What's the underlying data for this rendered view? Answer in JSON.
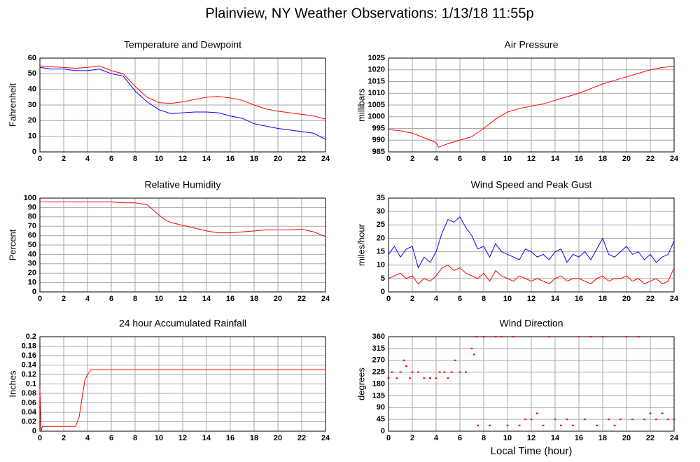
{
  "title": "Plainview, NY Weather Observations: 1/13/18 11:55p",
  "chart_data": [
    {
      "type": "line",
      "title": "Temperature and Dewpoint",
      "ylabel": "Fahrenheit",
      "x": [
        0,
        1,
        2,
        3,
        4,
        5,
        6,
        7,
        8,
        9,
        10,
        11,
        12,
        13,
        14,
        15,
        16,
        17,
        18,
        19,
        20,
        21,
        22,
        23,
        24
      ],
      "series": [
        {
          "color": "#ff0000",
          "values": [
            55,
            54.5,
            54,
            53.5,
            54,
            55,
            52,
            50,
            42,
            35,
            31.5,
            31,
            32,
            33.5,
            35,
            35.5,
            34.5,
            33,
            30,
            27.5,
            26,
            25,
            24,
            23,
            21
          ]
        },
        {
          "color": "#0000ff",
          "values": [
            54,
            53,
            53,
            52,
            52,
            53,
            50,
            48.5,
            39,
            32,
            27,
            24.5,
            25,
            25.5,
            25.5,
            25,
            23,
            21.5,
            18,
            16.5,
            15,
            14,
            13,
            12,
            8
          ]
        }
      ],
      "xlim": [
        0,
        24
      ],
      "xticks": [
        0,
        2,
        4,
        6,
        8,
        10,
        12,
        14,
        16,
        18,
        20,
        22,
        24
      ],
      "ylim": [
        0,
        60
      ],
      "yticks": [
        0,
        10,
        20,
        30,
        40,
        50,
        60
      ],
      "grid": true
    },
    {
      "type": "line",
      "title": "Air Pressure",
      "ylabel": "millibars",
      "x": [
        0,
        1,
        2,
        3,
        4,
        4.2,
        5,
        6,
        7,
        8,
        9,
        10,
        11,
        12,
        13,
        14,
        15,
        16,
        17,
        18,
        19,
        20,
        21,
        22,
        23,
        24
      ],
      "series": [
        {
          "color": "#ff0000",
          "values": [
            994.5,
            994,
            993,
            991,
            989,
            987,
            988.5,
            990,
            991.5,
            995,
            999,
            1002,
            1003.5,
            1004.5,
            1005.5,
            1007,
            1008.5,
            1010,
            1012,
            1014,
            1015.5,
            1017,
            1018.5,
            1020,
            1021,
            1021.5
          ]
        }
      ],
      "xlim": [
        0,
        24
      ],
      "xticks": [
        0,
        2,
        4,
        6,
        8,
        10,
        12,
        14,
        16,
        18,
        20,
        22,
        24
      ],
      "ylim": [
        985,
        1025
      ],
      "yticks": [
        985,
        990,
        995,
        1000,
        1005,
        1010,
        1015,
        1020,
        1025
      ],
      "grid": true
    },
    {
      "type": "line",
      "title": "Relative Humidity",
      "ylabel": "Percent",
      "x": [
        0,
        1,
        2,
        3,
        4,
        5,
        6,
        7,
        8,
        9,
        10,
        10.5,
        11,
        12,
        13,
        14,
        15,
        16,
        17,
        18,
        19,
        20,
        21,
        22,
        23,
        24
      ],
      "series": [
        {
          "color": "#ff0000",
          "values": [
            96,
            96,
            96,
            96,
            96,
            96,
            96,
            95,
            95,
            93,
            82,
            77,
            74,
            71,
            68,
            65,
            63,
            63,
            64,
            65,
            66,
            66,
            66,
            67,
            64,
            59
          ]
        }
      ],
      "xlim": [
        0,
        24
      ],
      "xticks": [
        0,
        2,
        4,
        6,
        8,
        10,
        12,
        14,
        16,
        18,
        20,
        22,
        24
      ],
      "ylim": [
        0,
        100
      ],
      "yticks": [
        0,
        10,
        20,
        30,
        40,
        50,
        60,
        70,
        80,
        90,
        100
      ],
      "grid": true
    },
    {
      "type": "line",
      "title": "Wind Speed and Peak Gust",
      "ylabel": "miles/hour",
      "x": [
        0,
        0.5,
        1,
        1.5,
        2,
        2.5,
        3,
        3.5,
        4,
        4.5,
        5,
        5.5,
        6,
        6.5,
        7,
        7.5,
        8,
        8.5,
        9,
        9.5,
        10,
        10.5,
        11,
        11.5,
        12,
        12.5,
        13,
        13.5,
        14,
        14.5,
        15,
        15.5,
        16,
        16.5,
        17,
        17.5,
        18,
        18.5,
        19,
        19.5,
        20,
        20.5,
        21,
        21.5,
        22,
        22.5,
        23,
        23.5,
        24
      ],
      "series": [
        {
          "color": "#0000ff",
          "values": [
            14,
            17,
            13,
            16,
            17,
            9,
            13,
            11,
            15,
            22,
            27,
            26,
            28,
            24,
            21,
            16,
            17,
            13,
            18,
            15,
            14,
            13,
            12,
            16,
            15,
            13,
            14,
            12,
            15,
            16,
            11,
            14,
            13,
            15,
            12,
            16,
            20,
            14,
            13,
            15,
            17,
            14,
            15,
            12,
            14,
            11,
            13,
            14,
            19
          ]
        },
        {
          "color": "#ff0000",
          "values": [
            5,
            6,
            7,
            5,
            6,
            3,
            5,
            4,
            6,
            9,
            10,
            8,
            9,
            7,
            6,
            5,
            7,
            4,
            8,
            6,
            5,
            4,
            6,
            5,
            4,
            5,
            4,
            3,
            5,
            6,
            4,
            5,
            5,
            4,
            3,
            5,
            6,
            4,
            5,
            5,
            6,
            4,
            5,
            3,
            4,
            5,
            3,
            4,
            9
          ]
        }
      ],
      "xlim": [
        0,
        24
      ],
      "xticks": [
        0,
        2,
        4,
        6,
        8,
        10,
        12,
        14,
        16,
        18,
        20,
        22,
        24
      ],
      "ylim": [
        0,
        35
      ],
      "yticks": [
        0,
        5,
        10,
        15,
        20,
        25,
        30,
        35
      ],
      "grid": true
    },
    {
      "type": "line",
      "title": "24 hour Accumulated Rainfall",
      "ylabel": "Inches",
      "x": [
        0,
        0.1,
        0.2,
        3,
        3.3,
        3.6,
        3.8,
        4,
        4.3,
        24
      ],
      "series": [
        {
          "color": "#ff0000",
          "values": [
            0.09,
            0,
            0.01,
            0.01,
            0.03,
            0.08,
            0.11,
            0.12,
            0.13,
            0.13
          ]
        }
      ],
      "xlim": [
        0,
        24
      ],
      "xticks": [
        0,
        2,
        4,
        6,
        8,
        10,
        12,
        14,
        16,
        18,
        20,
        22,
        24
      ],
      "ylim": [
        0,
        0.2
      ],
      "yticks": [
        0,
        0.02,
        0.04,
        0.06,
        0.08,
        0.1,
        0.12,
        0.14,
        0.16,
        0.18,
        0.2
      ],
      "grid": true
    },
    {
      "type": "scatter",
      "title": "Wind Direction",
      "ylabel": "degrees",
      "xlabel": "Local Time (hour)",
      "x": [
        0,
        0.3,
        0.7,
        1,
        1.3,
        1.5,
        1.8,
        2,
        2.5,
        3,
        3.5,
        4,
        4.3,
        4.7,
        5,
        5.3,
        5.6,
        6,
        6.5,
        7,
        7.2,
        7.4,
        7.5,
        8,
        8.5,
        9,
        9.5,
        10,
        10.5,
        11,
        11.5,
        12,
        12.5,
        13,
        13.5,
        14,
        14.5,
        15,
        15.5,
        16,
        16.5,
        17,
        17.5,
        18,
        18.5,
        19,
        19.5,
        20,
        20.5,
        21,
        21.5,
        22,
        22.5,
        23,
        23.5,
        24
      ],
      "series": [
        {
          "color": "#ff0000",
          "values": [
            202,
            225,
            202,
            225,
            270,
            248,
            202,
            225,
            225,
            202,
            202,
            202,
            225,
            225,
            202,
            225,
            270,
            225,
            225,
            315,
            292,
            360,
            22,
            360,
            22,
            360,
            360,
            22,
            360,
            22,
            45,
            45,
            68,
            22,
            360,
            45,
            22,
            45,
            22,
            360,
            45,
            360,
            22,
            360,
            45,
            22,
            45,
            360,
            45,
            360,
            45,
            68,
            45,
            68,
            45,
            45
          ]
        }
      ],
      "xlim": [
        0,
        24
      ],
      "xticks": [
        0,
        2,
        4,
        6,
        8,
        10,
        12,
        14,
        16,
        18,
        20,
        22,
        24
      ],
      "ylim": [
        0,
        360
      ],
      "yticks": [
        0,
        45,
        90,
        135,
        180,
        225,
        270,
        315,
        360
      ],
      "grid": true
    }
  ]
}
